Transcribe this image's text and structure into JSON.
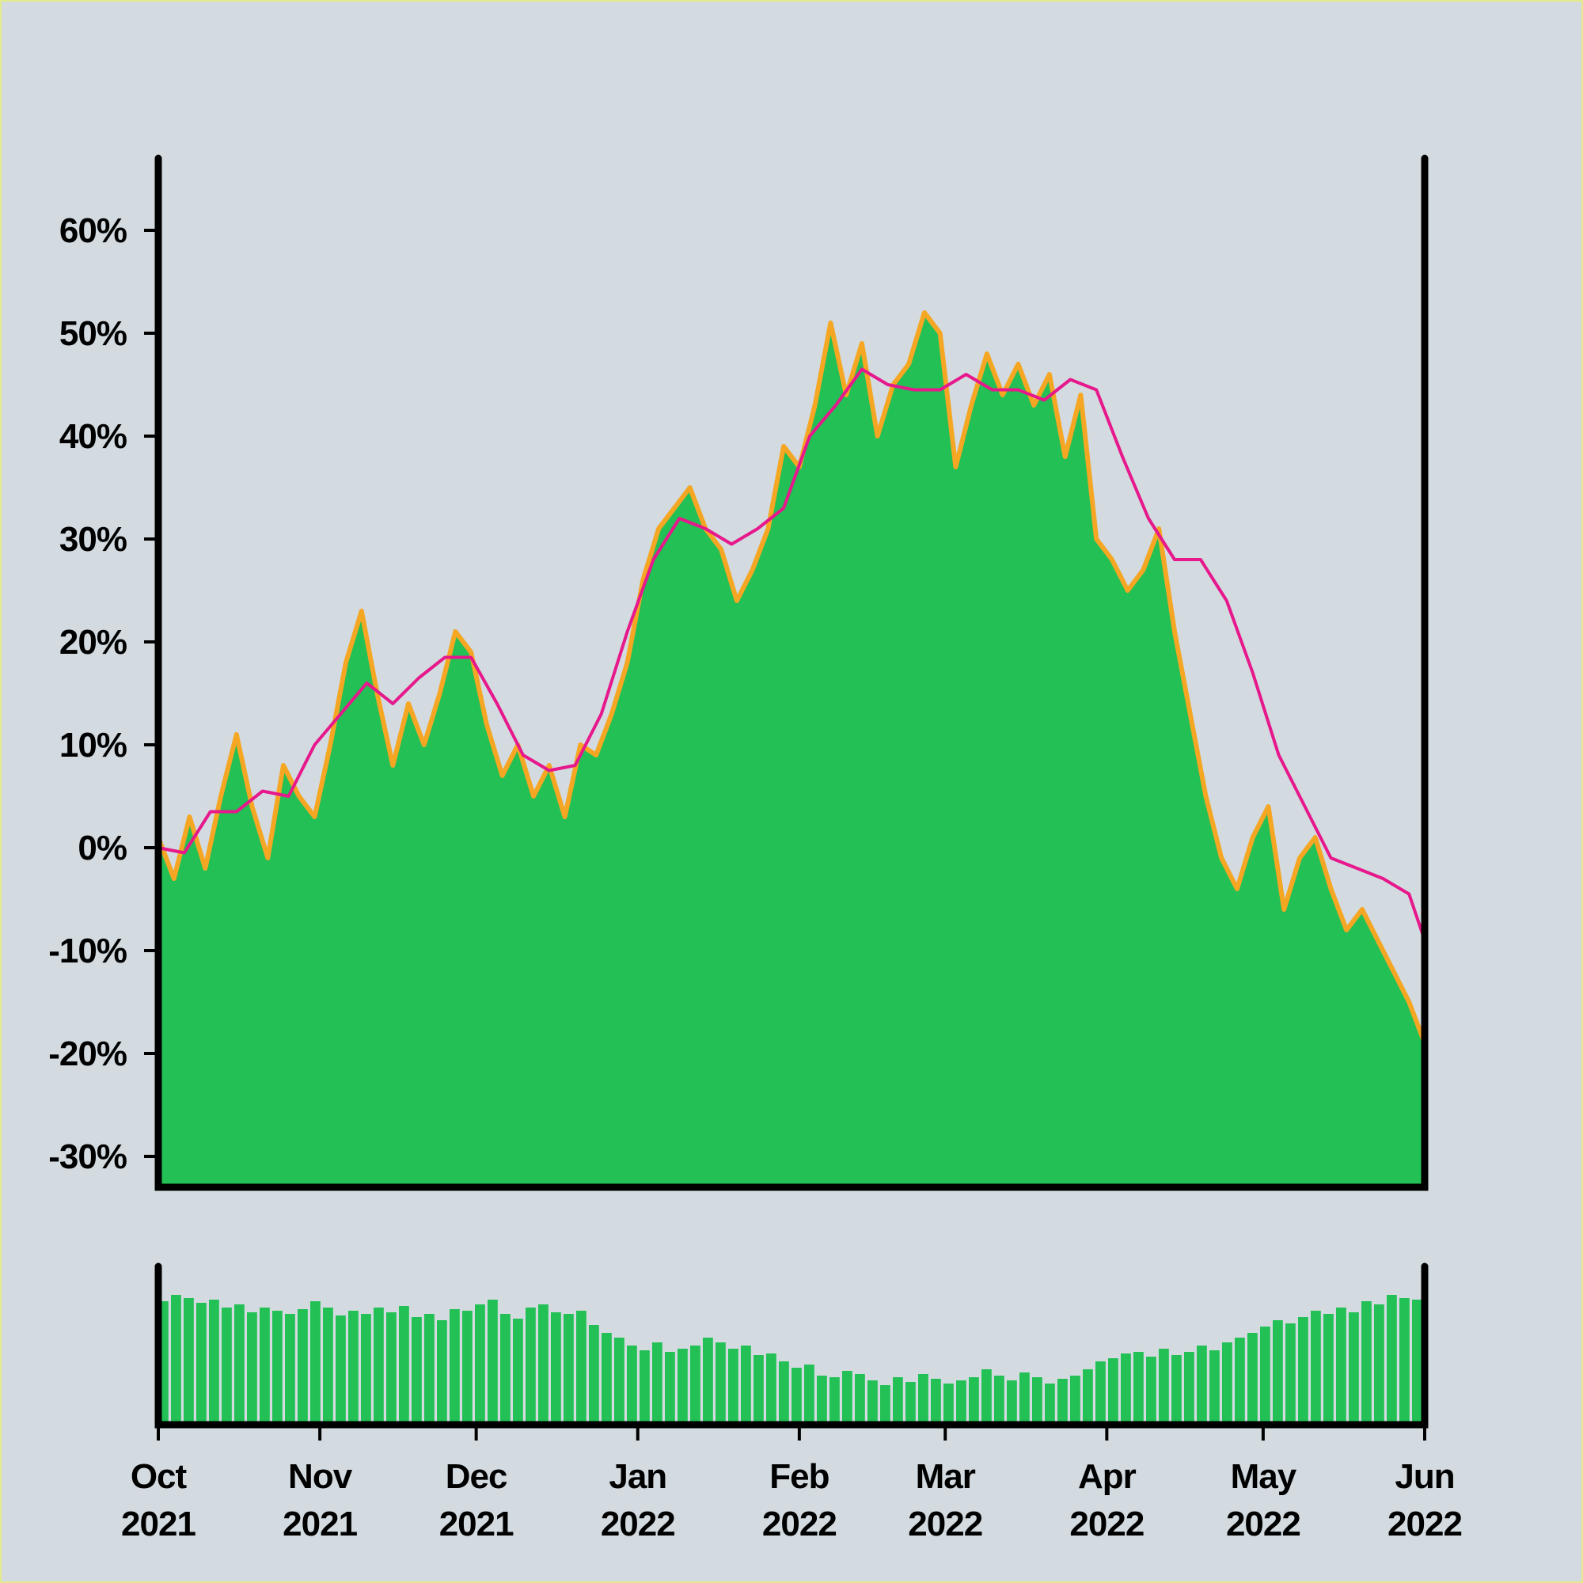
{
  "chart_data": {
    "type": "area",
    "title": "",
    "xlabel": "",
    "ylabel": "",
    "y_tick_labels": [
      "60%",
      "50%",
      "40%",
      "30%",
      "20%",
      "10%",
      "0%",
      "-10%",
      "-20%",
      "-30%"
    ],
    "y_ticks": [
      60,
      50,
      40,
      30,
      20,
      10,
      0,
      -10,
      -20,
      -30
    ],
    "ylim": [
      -33,
      67
    ],
    "xlim": [
      "2021-10-01",
      "2022-06-01"
    ],
    "x_ticks": [
      {
        "date": "2021-10-01",
        "month": "Oct",
        "year": "2021"
      },
      {
        "date": "2021-11-01",
        "month": "Nov",
        "year": "2021"
      },
      {
        "date": "2021-12-01",
        "month": "Dec",
        "year": "2021"
      },
      {
        "date": "2022-01-01",
        "month": "Jan",
        "year": "2022"
      },
      {
        "date": "2022-02-01",
        "month": "Feb",
        "year": "2022"
      },
      {
        "date": "2022-03-01",
        "month": "Mar",
        "year": "2022"
      },
      {
        "date": "2022-04-01",
        "month": "Apr",
        "year": "2022"
      },
      {
        "date": "2022-05-01",
        "month": "May",
        "year": "2022"
      },
      {
        "date": "2022-06-01",
        "month": "Jun",
        "year": "2022"
      }
    ],
    "grid": false,
    "legend": "none",
    "series": [
      {
        "kind": "area",
        "fill_color": "#22c055",
        "edge_color": "#f5a623",
        "x": [
          "2021-10-01",
          "2021-10-04",
          "2021-10-07",
          "2021-10-10",
          "2021-10-13",
          "2021-10-16",
          "2021-10-19",
          "2021-10-22",
          "2021-10-25",
          "2021-10-28",
          "2021-10-31",
          "2021-11-03",
          "2021-11-06",
          "2021-11-09",
          "2021-11-12",
          "2021-11-15",
          "2021-11-18",
          "2021-11-21",
          "2021-11-24",
          "2021-11-27",
          "2021-11-30",
          "2021-12-03",
          "2021-12-06",
          "2021-12-09",
          "2021-12-12",
          "2021-12-15",
          "2021-12-18",
          "2021-12-21",
          "2021-12-24",
          "2021-12-27",
          "2021-12-30",
          "2022-01-02",
          "2022-01-05",
          "2022-01-08",
          "2022-01-11",
          "2022-01-14",
          "2022-01-17",
          "2022-01-20",
          "2022-01-23",
          "2022-01-26",
          "2022-01-29",
          "2022-02-01",
          "2022-02-04",
          "2022-02-07",
          "2022-02-10",
          "2022-02-13",
          "2022-02-16",
          "2022-02-19",
          "2022-02-22",
          "2022-02-25",
          "2022-02-28",
          "2022-03-03",
          "2022-03-06",
          "2022-03-09",
          "2022-03-12",
          "2022-03-15",
          "2022-03-18",
          "2022-03-21",
          "2022-03-24",
          "2022-03-27",
          "2022-03-30",
          "2022-04-02",
          "2022-04-05",
          "2022-04-08",
          "2022-04-11",
          "2022-04-14",
          "2022-04-17",
          "2022-04-20",
          "2022-04-23",
          "2022-04-26",
          "2022-04-29",
          "2022-05-02",
          "2022-05-05",
          "2022-05-08",
          "2022-05-11",
          "2022-05-14",
          "2022-05-17",
          "2022-05-20",
          "2022-05-23",
          "2022-05-26",
          "2022-05-29",
          "2022-06-01"
        ],
        "values": [
          1,
          -3,
          3,
          -2,
          5,
          11,
          4,
          -1,
          8,
          5,
          3,
          10,
          18,
          23,
          15,
          8,
          14,
          10,
          15,
          21,
          19,
          12,
          7,
          10,
          5,
          8,
          3,
          10,
          9,
          13,
          18,
          26,
          31,
          33,
          35,
          31,
          29,
          24,
          27,
          31,
          39,
          37,
          43,
          51,
          44,
          49,
          40,
          45,
          47,
          52,
          50,
          37,
          43,
          48,
          44,
          47,
          43,
          46,
          38,
          44,
          30,
          28,
          25,
          27,
          31,
          21,
          13,
          5,
          -1,
          -4,
          1,
          4,
          -6,
          -1,
          1,
          -4,
          -8,
          -6,
          -9,
          -12,
          -15,
          -19
        ]
      },
      {
        "kind": "line",
        "stroke_color": "#e6188c",
        "x": [
          "2021-10-01",
          "2021-10-06",
          "2021-10-11",
          "2021-10-16",
          "2021-10-21",
          "2021-10-26",
          "2021-10-31",
          "2021-11-05",
          "2021-11-10",
          "2021-11-15",
          "2021-11-20",
          "2021-11-25",
          "2021-11-30",
          "2021-12-05",
          "2021-12-10",
          "2021-12-15",
          "2021-12-20",
          "2021-12-25",
          "2021-12-30",
          "2022-01-04",
          "2022-01-09",
          "2022-01-14",
          "2022-01-19",
          "2022-01-24",
          "2022-01-29",
          "2022-02-03",
          "2022-02-08",
          "2022-02-13",
          "2022-02-18",
          "2022-02-23",
          "2022-02-28",
          "2022-03-05",
          "2022-03-10",
          "2022-03-15",
          "2022-03-20",
          "2022-03-25",
          "2022-03-30",
          "2022-04-04",
          "2022-04-09",
          "2022-04-14",
          "2022-04-19",
          "2022-04-24",
          "2022-04-29",
          "2022-05-04",
          "2022-05-09",
          "2022-05-14",
          "2022-05-19",
          "2022-05-24",
          "2022-05-29",
          "2022-06-01"
        ],
        "values": [
          0,
          -0.5,
          3.5,
          3.5,
          5.5,
          5,
          10,
          13,
          16,
          14,
          16.5,
          18.5,
          18.5,
          14,
          9,
          7.5,
          8,
          13,
          21,
          28,
          32,
          31,
          29.5,
          31,
          33,
          40,
          43,
          46.5,
          45,
          44.5,
          44.5,
          46,
          44.5,
          44.5,
          43.5,
          45.5,
          44.5,
          38,
          32,
          28,
          28,
          24,
          17,
          9,
          4,
          -1,
          -2,
          -3,
          -4.5,
          -9
        ]
      }
    ],
    "volume_panel": {
      "type": "bar",
      "color": "#22c055",
      "values": [
        0.78,
        0.82,
        0.8,
        0.77,
        0.79,
        0.74,
        0.76,
        0.71,
        0.74,
        0.72,
        0.7,
        0.73,
        0.78,
        0.74,
        0.69,
        0.72,
        0.7,
        0.74,
        0.71,
        0.75,
        0.68,
        0.7,
        0.66,
        0.73,
        0.72,
        0.76,
        0.79,
        0.7,
        0.67,
        0.74,
        0.76,
        0.71,
        0.7,
        0.72,
        0.63,
        0.58,
        0.55,
        0.5,
        0.47,
        0.52,
        0.46,
        0.48,
        0.5,
        0.55,
        0.52,
        0.48,
        0.5,
        0.44,
        0.45,
        0.4,
        0.36,
        0.38,
        0.31,
        0.3,
        0.34,
        0.32,
        0.28,
        0.25,
        0.3,
        0.27,
        0.32,
        0.29,
        0.26,
        0.28,
        0.3,
        0.35,
        0.31,
        0.28,
        0.33,
        0.3,
        0.26,
        0.29,
        0.31,
        0.35,
        0.4,
        0.42,
        0.45,
        0.46,
        0.43,
        0.48,
        0.44,
        0.46,
        0.5,
        0.47,
        0.52,
        0.55,
        0.58,
        0.62,
        0.66,
        0.64,
        0.68,
        0.72,
        0.7,
        0.74,
        0.71,
        0.78,
        0.76,
        0.82,
        0.8,
        0.79
      ]
    }
  }
}
